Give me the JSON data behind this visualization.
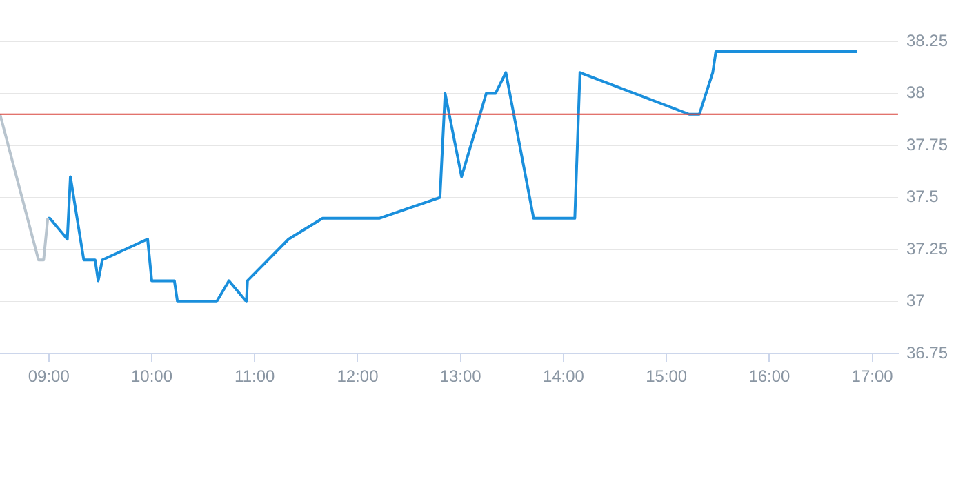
{
  "chart_data": {
    "type": "line",
    "xlim": [
      8.526,
      17.25
    ],
    "xticks": [
      {
        "value": 9,
        "label": "09:00"
      },
      {
        "value": 10,
        "label": "10:00"
      },
      {
        "value": 11,
        "label": "11:00"
      },
      {
        "value": 12,
        "label": "12:00"
      },
      {
        "value": 13,
        "label": "13:00"
      },
      {
        "value": 14,
        "label": "14:00"
      },
      {
        "value": 15,
        "label": "15:00"
      },
      {
        "value": 16,
        "label": "16:00"
      },
      {
        "value": 17,
        "label": "17:00"
      }
    ],
    "ylim": [
      36.75,
      38.25
    ],
    "yticks": [
      36.75,
      37,
      37.25,
      37.5,
      37.75,
      38,
      38.25
    ],
    "grid": "y",
    "legend": false,
    "marker": "none",
    "line_style": "solid",
    "series": [
      {
        "color": "#b8c4ce",
        "x": [
          8.526,
          8.9,
          8.95,
          8.99
        ],
        "values": [
          37.9,
          37.2,
          37.2,
          37.4
        ]
      },
      {
        "color": "#1a8fdc",
        "x": [
          8.99,
          9.01,
          9.18,
          9.21,
          9.34,
          9.45,
          9.48,
          9.52,
          9.96,
          10.0,
          10.22,
          10.25,
          10.63,
          10.75,
          10.92,
          10.93,
          11.33,
          11.66,
          12.21,
          12.8,
          12.85,
          13.01,
          13.25,
          13.34,
          13.44,
          13.71,
          14.11,
          14.16,
          15.22,
          15.32,
          15.45,
          15.48,
          16.85
        ],
        "values": [
          37.4,
          37.4,
          37.3,
          37.6,
          37.2,
          37.2,
          37.1,
          37.2,
          37.3,
          37.1,
          37.1,
          37.0,
          37.0,
          37.1,
          37.0,
          37.1,
          37.3,
          37.4,
          37.4,
          37.5,
          38.0,
          37.6,
          38.0,
          38.0,
          38.1,
          37.4,
          37.4,
          38.1,
          37.9,
          37.9,
          38.1,
          38.2,
          38.2
        ]
      }
    ],
    "ref_lines": [
      {
        "axis": "y",
        "value": 37.9,
        "color": "#d9453d"
      }
    ]
  }
}
